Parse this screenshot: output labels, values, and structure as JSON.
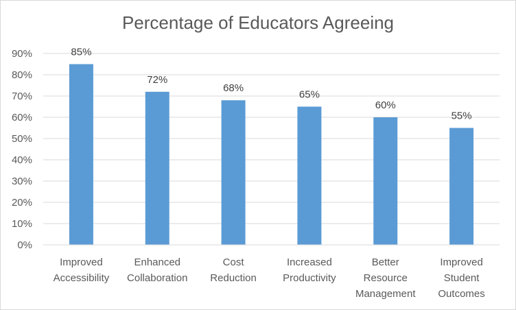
{
  "chart_data": {
    "type": "bar",
    "title": "Percentage of Educators Agreeing",
    "categories": [
      [
        "Improved",
        "Accessibility"
      ],
      [
        "Enhanced",
        "Collaboration"
      ],
      [
        "Cost",
        "Reduction"
      ],
      [
        "Increased",
        "Productivity"
      ],
      [
        "Better",
        "Resource",
        "Management"
      ],
      [
        "Improved",
        "Student",
        "Outcomes"
      ]
    ],
    "values": [
      85,
      72,
      68,
      65,
      60,
      55
    ],
    "data_labels": [
      "85%",
      "72%",
      "68%",
      "65%",
      "60%",
      "55%"
    ],
    "y_ticks": [
      "0%",
      "10%",
      "20%",
      "30%",
      "40%",
      "50%",
      "60%",
      "70%",
      "80%",
      "90%"
    ],
    "ylim": [
      0,
      90
    ],
    "xlabel": "",
    "ylabel": "",
    "grid": true,
    "legend": "none",
    "bar_color": "#5b9bd5",
    "grid_color": "#d9d9d9"
  }
}
